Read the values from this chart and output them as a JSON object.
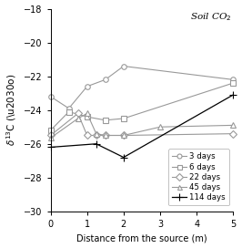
{
  "title": "Soil CO₂",
  "xlabel": "Distance from the source (m)",
  "ylabel": "δ¹³C (‰o)",
  "xlim": [
    0,
    5
  ],
  "ylim": [
    -30,
    -18
  ],
  "yticks": [
    -30,
    -28,
    -26,
    -24,
    -22,
    -20,
    -18
  ],
  "xticks": [
    0,
    1,
    2,
    3,
    4,
    5
  ],
  "series": [
    {
      "label": "3 days",
      "x": [
        0,
        0.5,
        1.0,
        1.5,
        2.0,
        5.0
      ],
      "y": [
        -23.2,
        -23.9,
        -22.6,
        -22.2,
        -21.4,
        -22.2
      ],
      "marker": "o",
      "color": "#999999",
      "linewidth": 0.8,
      "markersize": 4,
      "mfc": "white"
    },
    {
      "label": "6 days",
      "x": [
        0,
        0.5,
        1.0,
        1.5,
        2.0,
        5.0
      ],
      "y": [
        -25.2,
        -24.1,
        -24.4,
        -24.6,
        -24.5,
        -22.4
      ],
      "marker": "s",
      "color": "#999999",
      "linewidth": 0.8,
      "markersize": 4,
      "mfc": "white"
    },
    {
      "label": "22 days",
      "x": [
        0,
        0.75,
        1.0,
        1.25,
        1.5,
        2.0,
        5.0
      ],
      "y": [
        -25.5,
        -24.2,
        -25.5,
        -25.5,
        -25.5,
        -25.5,
        -25.4
      ],
      "marker": "D",
      "color": "#999999",
      "linewidth": 0.8,
      "markersize": 4,
      "mfc": "white"
    },
    {
      "label": "45 days",
      "x": [
        0,
        0.75,
        1.0,
        1.25,
        1.5,
        2.0,
        3.0,
        5.0
      ],
      "y": [
        -25.65,
        -24.5,
        -24.2,
        -25.4,
        -25.5,
        -25.5,
        -25.0,
        -24.9
      ],
      "marker": "^",
      "color": "#999999",
      "linewidth": 0.8,
      "markersize": 4,
      "mfc": "white"
    },
    {
      "label": "114 days",
      "x": [
        0,
        1.25,
        2.0,
        5.0
      ],
      "y": [
        -26.2,
        -26.0,
        -26.8,
        -23.1
      ],
      "marker": "+",
      "color": "#000000",
      "linewidth": 0.9,
      "markersize": 6,
      "mfc": "black"
    }
  ]
}
